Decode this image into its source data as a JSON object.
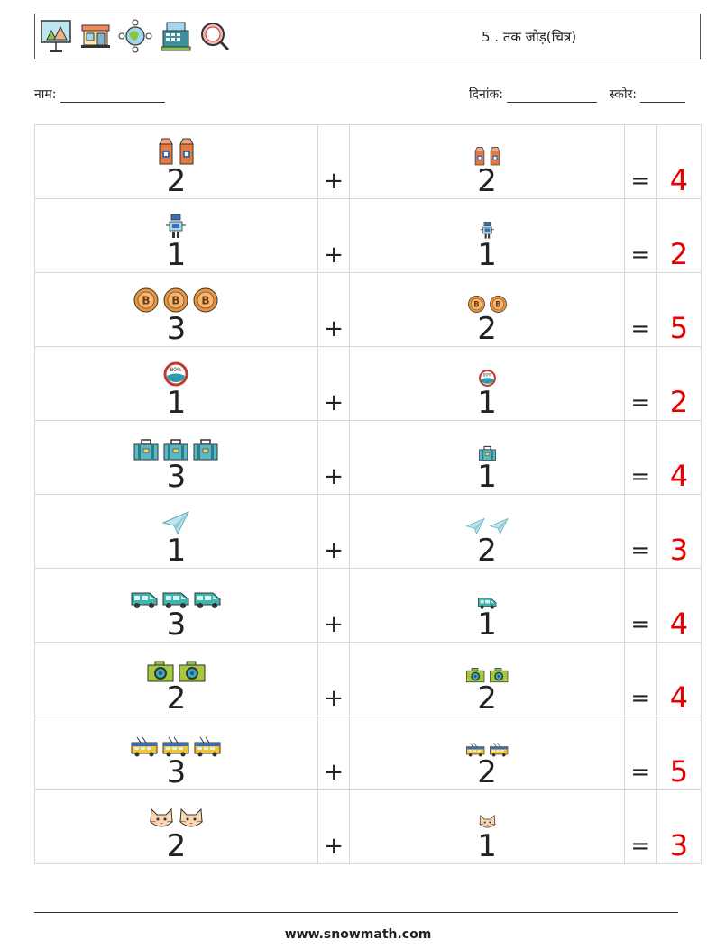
{
  "header": {
    "title": "5 . तक जोड़(चित्र)",
    "icons": [
      "presentation-board-icon",
      "shop-icon",
      "globe-network-icon",
      "cash-register-icon",
      "magnifier-search-icon"
    ]
  },
  "meta": {
    "name_label": "नाम:",
    "date_label": "दिनांक:",
    "score_label": "स्कोर:"
  },
  "rows": [
    {
      "icon": "milk-carton",
      "a": "2",
      "b": "2",
      "op": "+",
      "eq": "=",
      "result": "4"
    },
    {
      "icon": "robot",
      "a": "1",
      "b": "1",
      "op": "+",
      "eq": "=",
      "result": "2"
    },
    {
      "icon": "bitcoin-coin",
      "a": "3",
      "b": "2",
      "op": "+",
      "eq": "=",
      "result": "5"
    },
    {
      "icon": "battery-gauge",
      "a": "1",
      "b": "1",
      "op": "+",
      "eq": "=",
      "result": "2"
    },
    {
      "icon": "suitcase",
      "a": "3",
      "b": "1",
      "op": "+",
      "eq": "=",
      "result": "4"
    },
    {
      "icon": "paper-plane",
      "a": "1",
      "b": "2",
      "op": "+",
      "eq": "=",
      "result": "3"
    },
    {
      "icon": "van",
      "a": "3",
      "b": "1",
      "op": "+",
      "eq": "=",
      "result": "4"
    },
    {
      "icon": "camera",
      "a": "2",
      "b": "2",
      "op": "+",
      "eq": "=",
      "result": "4"
    },
    {
      "icon": "trolleybus",
      "a": "3",
      "b": "2",
      "op": "+",
      "eq": "=",
      "result": "5"
    },
    {
      "icon": "cat-face",
      "a": "2",
      "b": "1",
      "op": "+",
      "eq": "=",
      "result": "3"
    }
  ],
  "footer": {
    "site": "www.snowmath.com"
  },
  "colors": {
    "result": "#e60000",
    "border": "#d8d8d8"
  }
}
